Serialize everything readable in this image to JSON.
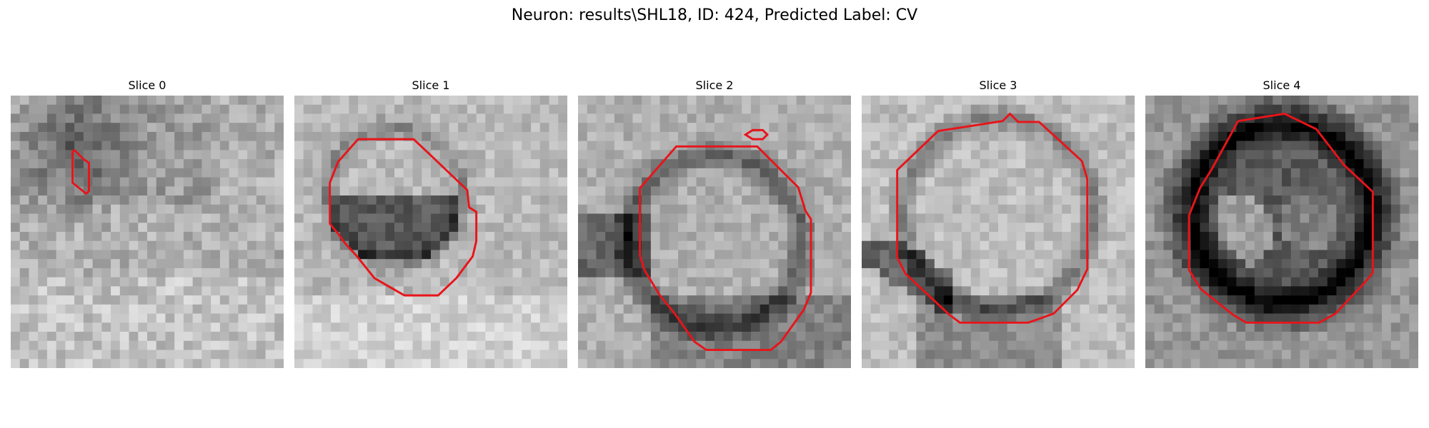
{
  "figure": {
    "title": "Neuron: results\\SHL18, ID: 424, Predicted Label: CV"
  },
  "panels": [
    {
      "title": "Slice 0"
    },
    {
      "title": "Slice 1"
    },
    {
      "title": "Slice 2"
    },
    {
      "title": "Slice 3"
    },
    {
      "title": "Slice 4"
    }
  ],
  "colors": {
    "contour": "#e8141a",
    "background": "#ffffff"
  }
}
